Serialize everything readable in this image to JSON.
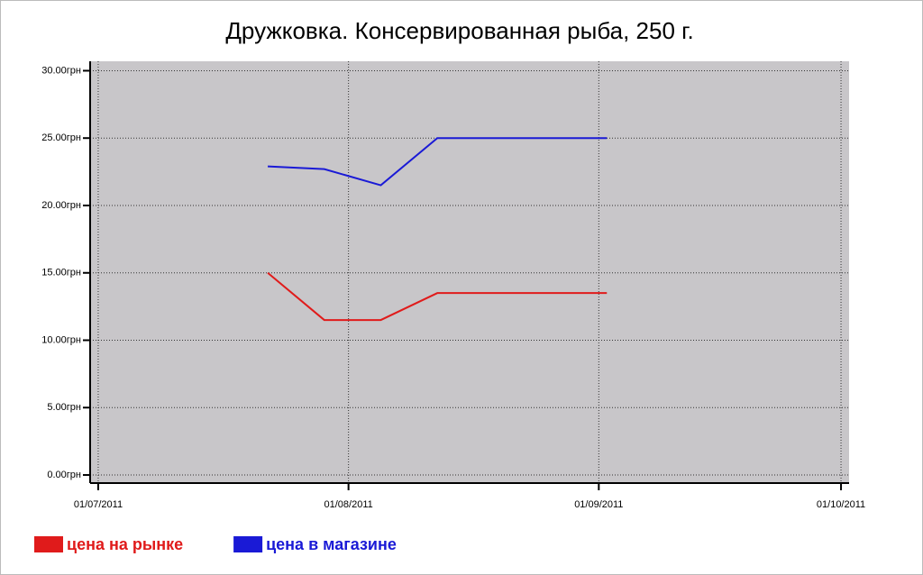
{
  "chart_data": {
    "type": "line",
    "title": "Дружковка. Консервированная рыба, 250 г.",
    "x": [
      "22/07/2011",
      "29/07/2011",
      "05/08/2011",
      "12/08/2011",
      "19/08/2011",
      "26/08/2011",
      "02/09/2011"
    ],
    "series": [
      {
        "name": "цена на рынке",
        "color": "#e01b1b",
        "values": [
          15,
          11.5,
          11.5,
          13.5,
          13.5,
          13.5,
          13.5
        ]
      },
      {
        "name": "цена в магазине",
        "color": "#1a1ad6",
        "values": [
          22.9,
          22.7,
          21.5,
          25,
          25,
          25,
          25
        ]
      }
    ],
    "xlim": [
      "30/06/2011",
      "02/10/2011"
    ],
    "xticks": [
      "01/07/2011",
      "01/08/2011",
      "01/09/2011",
      "01/10/2011"
    ],
    "ylim": [
      -0.6,
      30.7
    ],
    "yticks": [
      {
        "value": 0,
        "label": "0.00грн"
      },
      {
        "value": 5,
        "label": "5.00грн"
      },
      {
        "value": 10,
        "label": "10.00грн"
      },
      {
        "value": 15,
        "label": "15.00грн"
      },
      {
        "value": 20,
        "label": "20.00грн"
      },
      {
        "value": 25,
        "label": "25.00грн"
      },
      {
        "value": 30,
        "label": "30.00грн"
      }
    ],
    "grid": true,
    "background": "#c8c6c9"
  }
}
